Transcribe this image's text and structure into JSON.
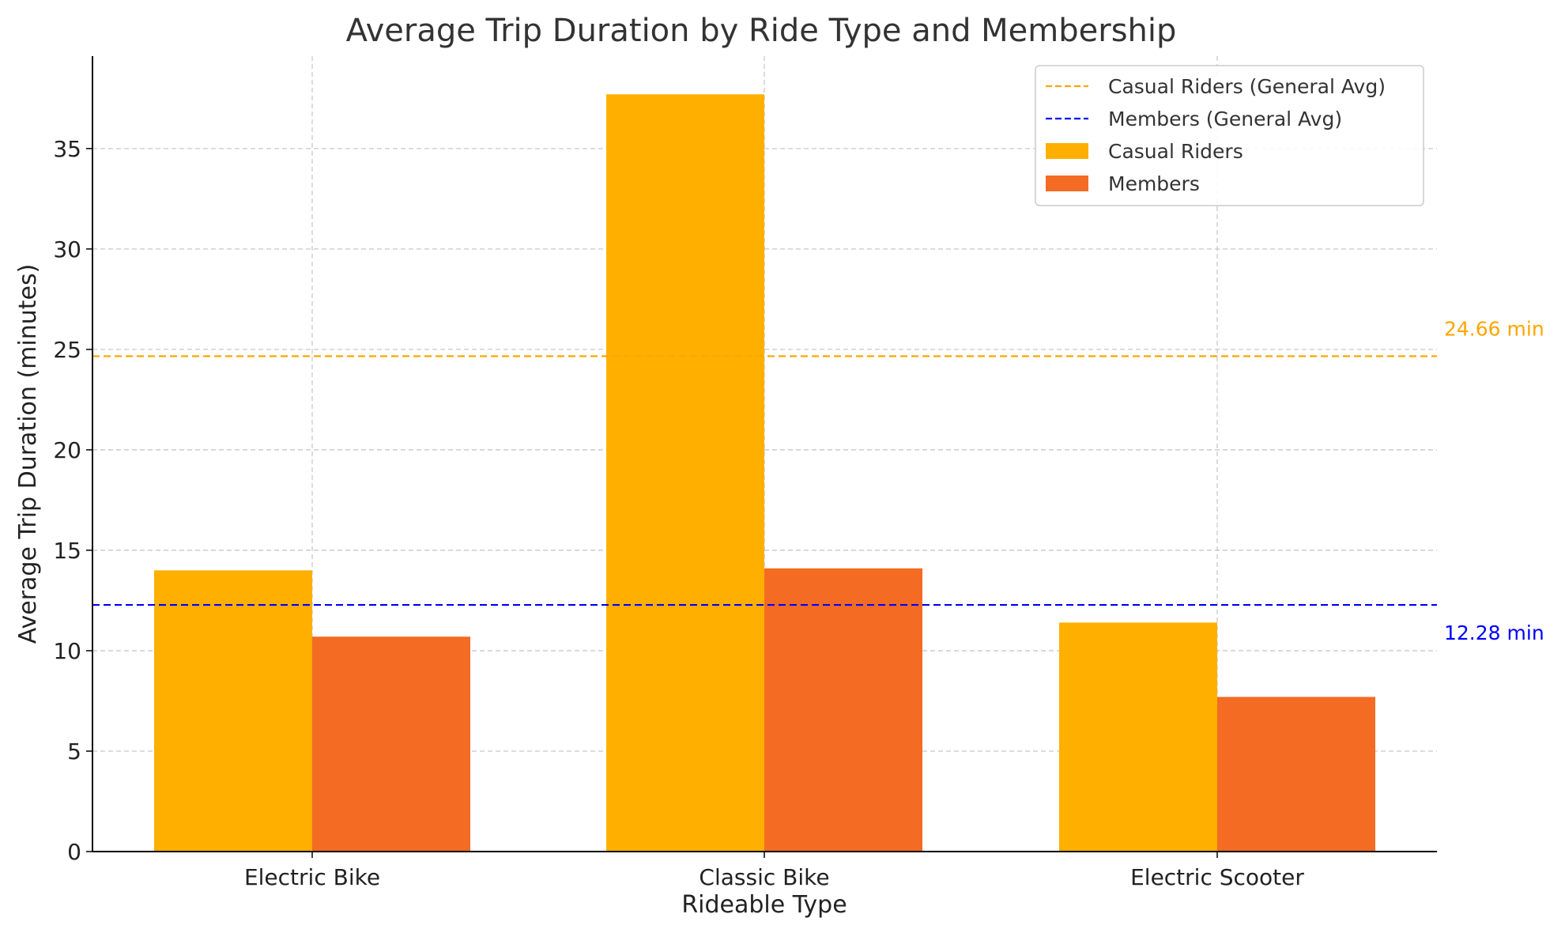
{
  "chart_data": {
    "type": "bar",
    "title": "Average Trip Duration by Ride Type and Membership",
    "xlabel": "Rideable Type",
    "ylabel": "Average Trip Duration (minutes)",
    "categories": [
      "Electric Bike",
      "Classic Bike",
      "Electric Scooter"
    ],
    "series": [
      {
        "name": "Casual Riders",
        "values": [
          14.0,
          37.7,
          11.4
        ],
        "color": "#FFAF00"
      },
      {
        "name": "Members",
        "values": [
          10.7,
          14.1,
          7.7
        ],
        "color": "#F46B23"
      }
    ],
    "reference_lines": [
      {
        "name": "Casual Riders (General Avg)",
        "value": 24.66,
        "label": "24.66 min",
        "color": "#FFA500"
      },
      {
        "name": "Members (General Avg)",
        "value": 12.28,
        "label": "12.28 min",
        "color": "#0000FF"
      }
    ],
    "ylim": [
      0,
      39.6
    ],
    "yticks": [
      0,
      5,
      10,
      15,
      20,
      25,
      30,
      35
    ],
    "grid": true,
    "legend_position": "top-right"
  }
}
